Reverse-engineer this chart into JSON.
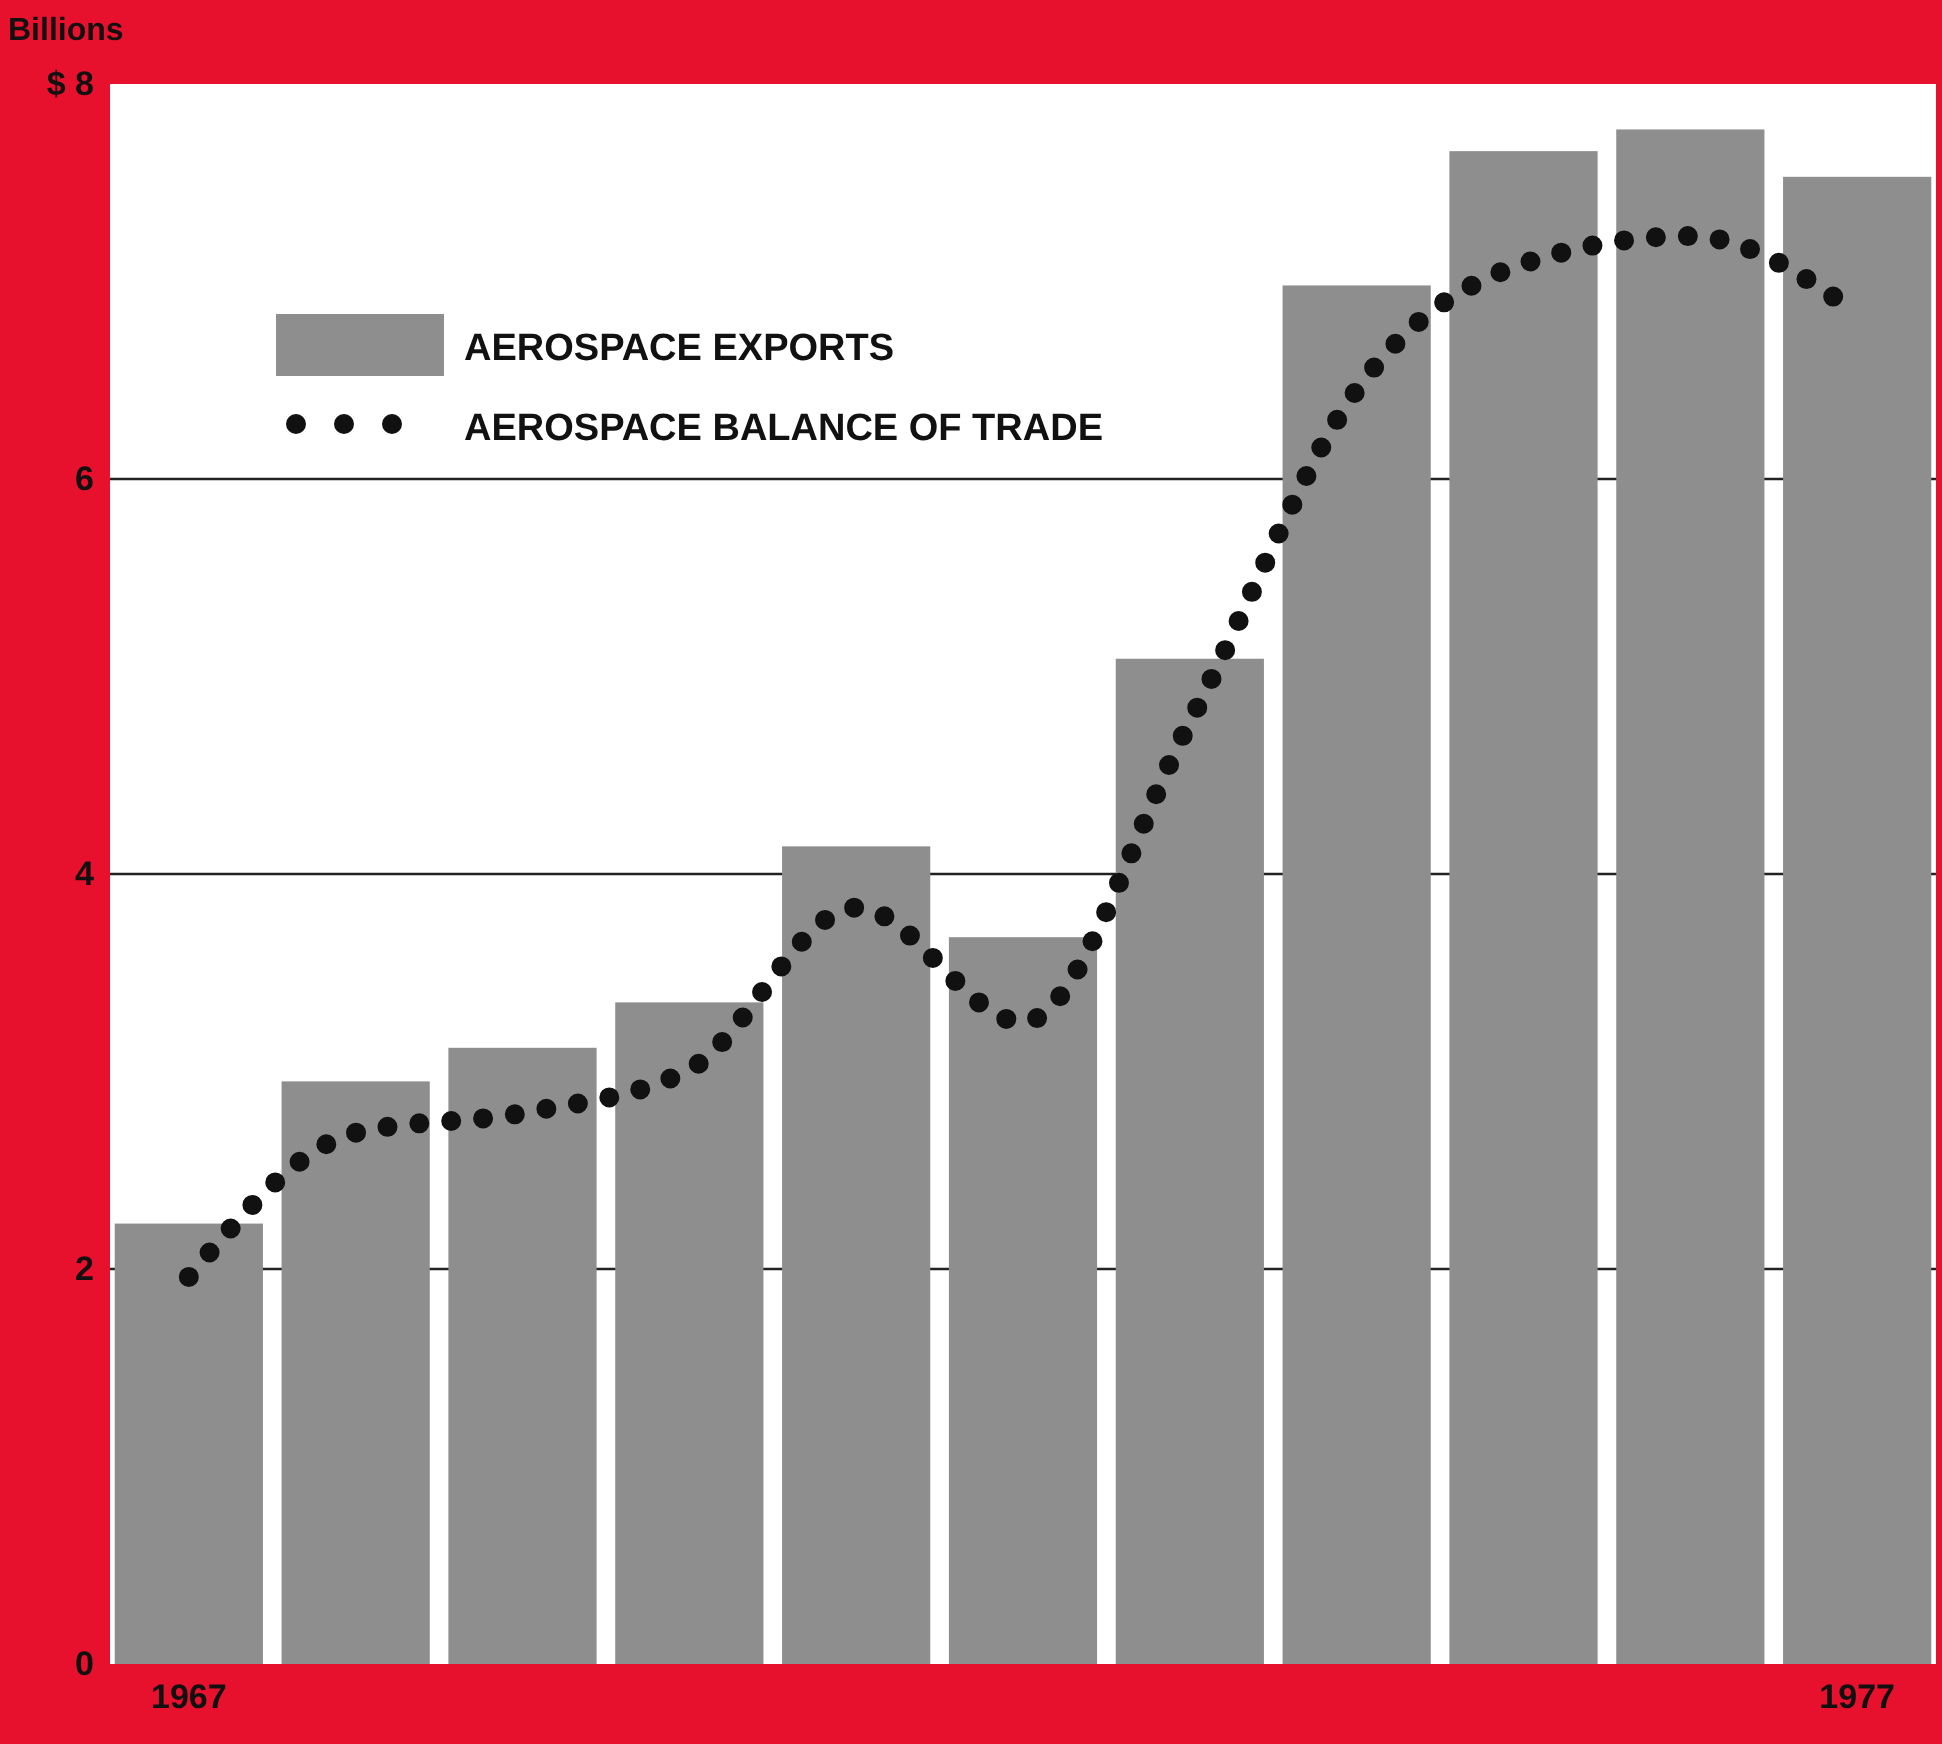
{
  "chart_data": {
    "type": "bar",
    "ylabel": "Billions",
    "categories": [
      "1967",
      null,
      null,
      null,
      null,
      null,
      null,
      null,
      null,
      null,
      "1977"
    ],
    "series": [
      {
        "name": "AEROSPACE EXPORTS",
        "color": "#8e8e8e",
        "values": [
          2.23,
          2.95,
          3.12,
          3.35,
          4.14,
          3.68,
          5.09,
          6.98,
          7.66,
          7.77,
          7.53
        ]
      },
      {
        "name": "AEROSPACE BALANCE OF TRADE",
        "type": "line",
        "color": "#111111",
        "line_style": "dotted",
        "values": [
          1.96,
          2.69,
          2.79,
          3.01,
          3.83,
          3.25,
          4.77,
          6.45,
          7.09,
          7.23,
          6.84
        ]
      }
    ],
    "ylim": [
      0,
      8
    ],
    "yticks": [
      0,
      2,
      4,
      6,
      {
        "value": 8,
        "label": "$ 8"
      }
    ],
    "grid": "y",
    "legend": "top left"
  }
}
